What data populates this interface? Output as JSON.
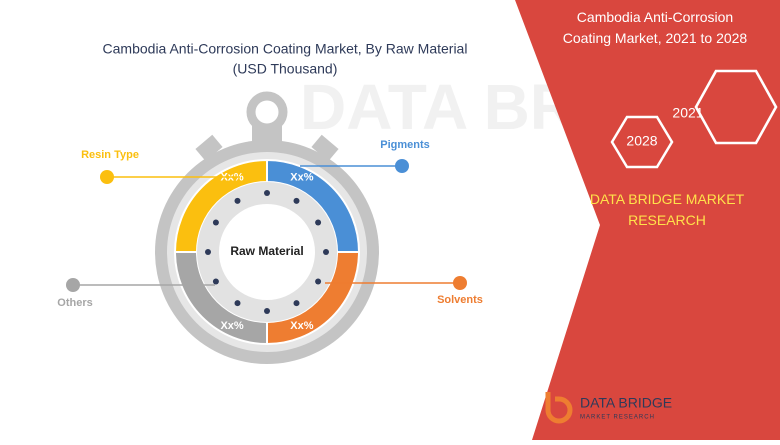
{
  "title": "Cambodia Anti-Corrosion Coating Market, By Raw Material",
  "subtitle": "(USD Thousand)",
  "center_label": "Raw Material",
  "segments": [
    {
      "name": "Pigments",
      "color": "#4a8fd6",
      "value_label": "Xx%"
    },
    {
      "name": "Solvents",
      "color": "#ee7d31",
      "value_label": "Xx%"
    },
    {
      "name": "Others",
      "color": "#a6a6a6",
      "value_label": "Xx%"
    },
    {
      "name": "Resin Type",
      "color": "#fbbf0f",
      "value_label": "Xx%"
    }
  ],
  "side_panel": {
    "title": "Cambodia Anti-Corrosion Coating Market, 2021 to 2028",
    "years": [
      "2021",
      "2028"
    ],
    "brand": "DATA BRIDGE MARKET RESEARCH"
  },
  "logo": {
    "name": "DATA BRIDGE",
    "tagline": "MARKET RESEARCH"
  }
}
